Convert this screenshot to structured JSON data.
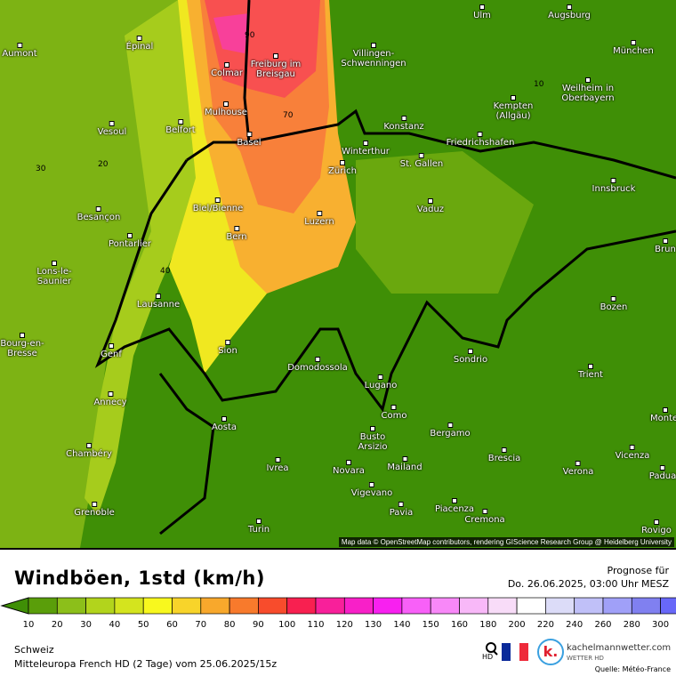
{
  "map": {
    "attribution": "Map data © OpenStreetMap contributors, rendering GIScience Research Group @ Heidelberg University",
    "cities": [
      "Ulm",
      "Augsburg",
      "Épinal",
      "Colmar",
      "Freiburg im Breisgau",
      "Villingen-Schwenningen",
      "München",
      "Kempten (Allgäu)",
      "Weilheim in Oberbayern",
      "Mulhouse",
      "Konstanz",
      "Vesoul",
      "Belfort",
      "Basel",
      "Winterthur",
      "Friedrichshafen",
      "St. Gallen",
      "Zürich",
      "Besançon",
      "Biel/Bienne",
      "Vaduz",
      "Innsbruck",
      "Luzern",
      "Bern",
      "Pontarlier",
      "Lons-le-Saunier",
      "Lausanne",
      "Bozen",
      "Bourg-en-Bresse",
      "Genf",
      "Sion",
      "Sondrio",
      "Domodossola",
      "Lugano",
      "Trient",
      "Annecy",
      "Como",
      "Aosta",
      "Busto Arsizio",
      "Bergamo",
      "Chambéry",
      "Brescia",
      "Ivrea",
      "Novara",
      "Mailand",
      "Verona",
      "Vicenza",
      "Vigevano",
      "Grenoble",
      "Piacenza",
      "Cremona",
      "Pavia",
      "Turin",
      "Rovigo",
      "Montel",
      "Brun",
      "Padua",
      "Aumont"
    ],
    "contour_labels": [
      "90",
      "70",
      "40",
      "20",
      "10",
      "30"
    ]
  },
  "legend": {
    "title": "Windböen, 1std (km/h)",
    "forecast_label": "Prognose für",
    "forecast_time": "Do. 26.06.2025, 03:00 Uhr MESZ",
    "ticks": [
      "10",
      "20",
      "30",
      "40",
      "50",
      "60",
      "70",
      "80",
      "90",
      "100",
      "110",
      "120",
      "130",
      "140",
      "150",
      "160",
      "180",
      "200",
      "220",
      "240",
      "260",
      "280",
      "300"
    ],
    "colors": [
      "#3f8f06",
      "#5a9e0a",
      "#8cbf1a",
      "#b2d41c",
      "#d4e41e",
      "#f8f81e",
      "#f8d42a",
      "#f8a82c",
      "#f87a2c",
      "#f84c2c",
      "#f82050",
      "#f8209a",
      "#f820c8",
      "#f820f0",
      "#f860f8",
      "#f888f8",
      "#f8b8f8",
      "#f8dcf8",
      "#ffffff",
      "#dcdcf8",
      "#c0c0f8",
      "#a0a0f8",
      "#8080f0",
      "#6868f8"
    ]
  },
  "footer": {
    "region": "Schweiz",
    "model": "Mitteleuropa French HD (2 Tage) vom  25.06.2025/15z",
    "hd_label": "HD",
    "brand": "kachelmannwetter.com",
    "brand_sub": "WETTER HD",
    "source": "Quelle: Météo-France"
  }
}
